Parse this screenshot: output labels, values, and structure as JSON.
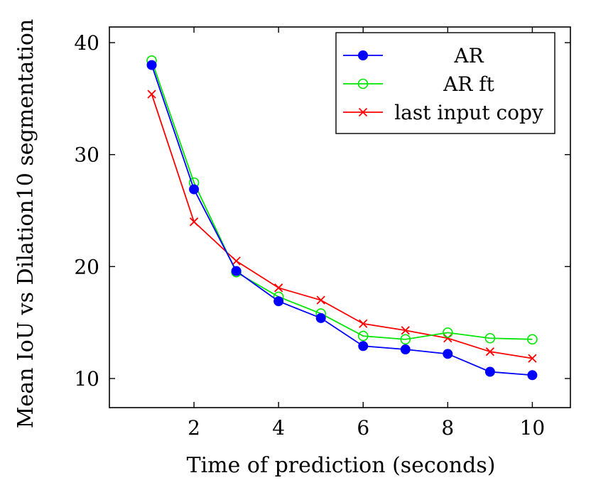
{
  "chart_data": {
    "type": "line",
    "xlabel": "Time of prediction (seconds)",
    "ylabel": "Mean IoU vs Dilation10 segmentation",
    "xlim": [
      0.0,
      10.9
    ],
    "ylim": [
      7.4,
      41.4
    ],
    "x_ticks": [
      2,
      4,
      6,
      8,
      10
    ],
    "y_ticks": [
      10,
      20,
      30,
      40
    ],
    "x_tick_labels": [
      "2",
      "4",
      "6",
      "8",
      "10"
    ],
    "y_tick_labels": [
      "10",
      "20",
      "30",
      "40"
    ],
    "legend_position": "top-right",
    "grid": false,
    "x": [
      1,
      2,
      3,
      4,
      5,
      6,
      7,
      8,
      9,
      10
    ],
    "series": [
      {
        "name": "AR",
        "color": "#0000ff",
        "marker": "filled-circle",
        "values": [
          38.0,
          26.9,
          19.6,
          16.9,
          15.4,
          12.9,
          12.6,
          12.2,
          10.6,
          10.3
        ]
      },
      {
        "name": "AR ft",
        "color": "#00e600",
        "marker": "open-circle",
        "values": [
          38.4,
          27.5,
          19.5,
          17.3,
          15.8,
          13.8,
          13.5,
          14.1,
          13.6,
          13.5
        ]
      },
      {
        "name": "last input copy",
        "color": "#ff0000",
        "marker": "cross",
        "values": [
          35.4,
          24.0,
          20.5,
          18.1,
          17.0,
          14.9,
          14.3,
          13.6,
          12.4,
          11.8
        ]
      }
    ]
  }
}
